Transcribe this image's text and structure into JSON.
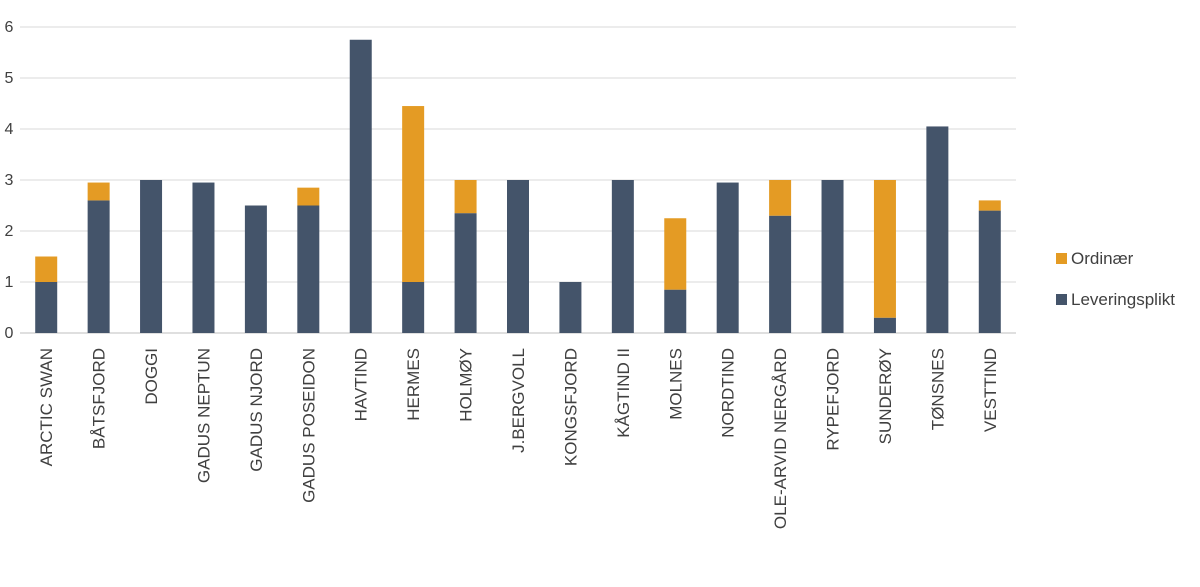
{
  "chart_data": {
    "type": "bar",
    "stacked": true,
    "categories": [
      "ARCTIC SWAN",
      "BÅTSFJORD",
      "DOGGI",
      "GADUS NEPTUN",
      "GADUS NJORD",
      "GADUS POSEIDON",
      "HAVTIND",
      "HERMES",
      "HOLMØY",
      "J.BERGVOLL",
      "KONGSFJORD",
      "KÅGTIND II",
      "MOLNES",
      "NORDTIND",
      "OLE-ARVID NERGÅRD",
      "RYPEFJORD",
      "SUNDERØY",
      "TØNSNES",
      "VESTTIND"
    ],
    "series": [
      {
        "name": "Leveringsplikt",
        "color": "#44546a",
        "values": [
          1,
          2.6,
          3,
          2.95,
          2.5,
          2.5,
          5.75,
          1,
          2.35,
          3,
          1,
          3,
          0.85,
          2.95,
          2.3,
          3,
          0.3,
          4.05,
          2.4
        ]
      },
      {
        "name": "Ordinær",
        "color": "#e49b24",
        "values": [
          0.5,
          0.35,
          0,
          0,
          0,
          0.35,
          0,
          3.45,
          0.65,
          0,
          0,
          0,
          1.4,
          0,
          0.7,
          0,
          2.7,
          0,
          0.2
        ]
      }
    ],
    "ylim": [
      0,
      6
    ],
    "yticks": [
      0,
      1,
      2,
      3,
      4,
      5,
      6
    ],
    "grid": true,
    "legend_position": "right",
    "legend_order": [
      "Ordinær",
      "Leveringsplikt"
    ],
    "title": "",
    "xlabel": "",
    "ylabel": ""
  }
}
